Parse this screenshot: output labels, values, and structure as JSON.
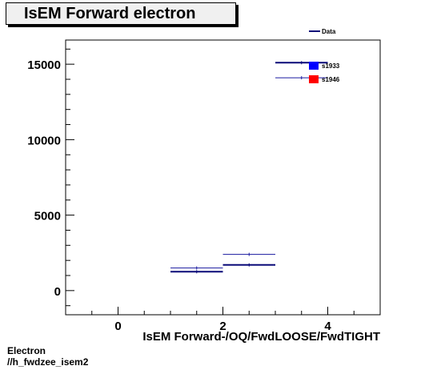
{
  "chart_data": {
    "type": "scatter",
    "title": "IsEM Forward electron",
    "xlabel": "IsEM Forward-/OQ/FwdLOOSE/FwdTIGHT",
    "ylabel": "",
    "xlim": [
      -1,
      5
    ],
    "ylim": [
      -1600,
      16600
    ],
    "xticks": [
      0,
      2,
      4
    ],
    "yticks": [
      0,
      5000,
      10000,
      15000
    ],
    "xtick_labels": [
      "0",
      "2",
      "4"
    ],
    "ytick_labels": [
      "0",
      "5000",
      "10000",
      "15000"
    ],
    "grid": false,
    "legend_position": "top-right",
    "legend": [
      "Data",
      "s1933",
      "s1946"
    ],
    "series": [
      {
        "name": "s1933",
        "color": "#0a0a78",
        "bold": true,
        "points": [
          {
            "x": 1.5,
            "y": 1250
          },
          {
            "x": 2.5,
            "y": 1700
          },
          {
            "x": 3.5,
            "y": 15100
          }
        ]
      },
      {
        "name": "s1946",
        "color": "#1a1aa0",
        "bold": false,
        "points": [
          {
            "x": 1.5,
            "y": 1500
          },
          {
            "x": 2.5,
            "y": 2400
          },
          {
            "x": 3.5,
            "y": 14100
          }
        ]
      }
    ],
    "x_halfwidth": 0.5
  },
  "legend_colors": {
    "data": "#0a0a78",
    "s1933": "#0000ff",
    "s1946": "#ff0000"
  },
  "footer": {
    "line1": "Electron",
    "line2": "//h_fwdzee_isem2"
  }
}
